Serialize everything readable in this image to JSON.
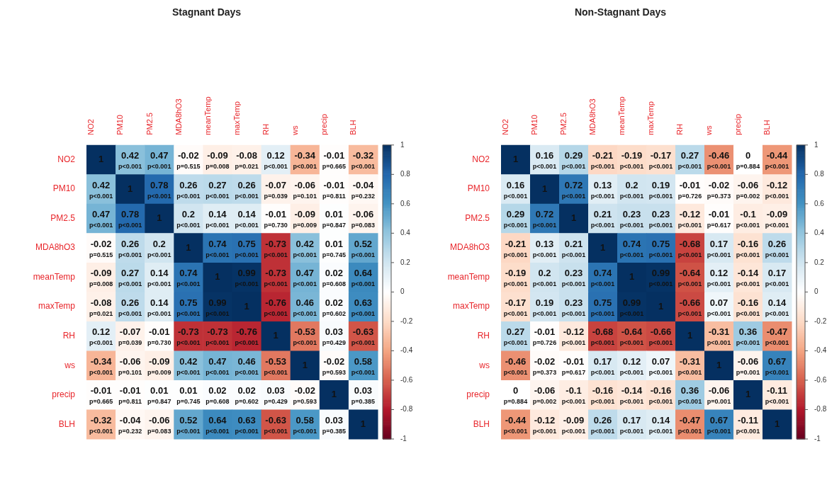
{
  "chart_data": [
    {
      "type": "heatmap",
      "title": "Stagnant Days",
      "categories": [
        "NO2",
        "PM10",
        "PM2.5",
        "MDA8hO3",
        "meanTemp",
        "maxTemp",
        "RH",
        "ws",
        "precip",
        "BLH"
      ],
      "y_categories": [
        "NO2",
        "PM10",
        "PM2.5",
        "MDA8hO3",
        "meanTemp",
        "maxTemp",
        "RH",
        "ws",
        "precip",
        "BLH"
      ],
      "cells": [
        [
          1,
          0.42,
          0.47,
          -0.02,
          -0.09,
          -0.08,
          0.12,
          -0.34,
          -0.01,
          -0.32
        ],
        [
          0.42,
          1,
          0.78,
          0.26,
          0.27,
          0.26,
          -0.07,
          -0.06,
          -0.01,
          -0.04
        ],
        [
          0.47,
          0.78,
          1,
          0.2,
          0.14,
          0.14,
          -0.01,
          -0.09,
          0.01,
          -0.06
        ],
        [
          -0.02,
          0.26,
          0.2,
          1,
          0.74,
          0.75,
          -0.73,
          0.42,
          0.01,
          0.52
        ],
        [
          -0.09,
          0.27,
          0.14,
          0.74,
          1,
          0.99,
          -0.73,
          0.47,
          0.02,
          0.64
        ],
        [
          -0.08,
          0.26,
          0.14,
          0.75,
          0.99,
          1,
          -0.76,
          0.46,
          0.02,
          0.63
        ],
        [
          0.12,
          -0.07,
          -0.01,
          -0.73,
          -0.73,
          -0.76,
          1,
          -0.53,
          0.03,
          -0.63
        ],
        [
          -0.34,
          -0.06,
          -0.09,
          0.42,
          0.47,
          0.46,
          -0.53,
          1,
          -0.02,
          0.58
        ],
        [
          -0.01,
          -0.01,
          0.01,
          0.01,
          0.02,
          0.02,
          0.03,
          -0.02,
          1,
          0.03
        ],
        [
          -0.32,
          -0.04,
          -0.06,
          0.52,
          0.64,
          0.63,
          -0.63,
          0.58,
          0.03,
          1
        ]
      ],
      "cell_labels": [
        [
          "1",
          "0.42\np<0.001",
          "0.47\np<0.001",
          "-0.02\np=0.515",
          "-0.09\np=0.008",
          "-0.08\np=0.021",
          "0.12\np<0.001",
          "-0.34\np<0.001",
          "-0.01\np=0.665",
          "-0.32\np<0.001"
        ],
        [
          "0.42\np<0.001",
          "1",
          "0.78\np<0.001",
          "0.26\np<0.001",
          "0.27\np<0.001",
          "0.26\np<0.001",
          "-0.07\np=0.039",
          "-0.06\np=0.101",
          "-0.01\np=0.811",
          "-0.04\np=0.232"
        ],
        [
          "0.47\np<0.001",
          "0.78\np<0.001",
          "1",
          "0.2\np<0.001",
          "0.14\np<0.001",
          "0.14\np<0.001",
          "-0.01\np=0.730",
          "-0.09\np=0.009",
          "0.01\np=0.847",
          "-0.06\np=0.083"
        ],
        [
          "-0.02\np=0.515",
          "0.26\np<0.001",
          "0.2\np<0.001",
          "1",
          "0.74\np<0.001",
          "0.75\np<0.001",
          "-0.73\np<0.001",
          "0.42\np<0.001",
          "0.01\np=0.745",
          "0.52\np<0.001"
        ],
        [
          "-0.09\np=0.008",
          "0.27\np<0.001",
          "0.14\np<0.001",
          "0.74\np<0.001",
          "1",
          "0.99\np<0.001",
          "-0.73\np<0.001",
          "0.47\np<0.001",
          "0.02\np=0.608",
          "0.64\np<0.001"
        ],
        [
          "-0.08\np=0.021",
          "0.26\np<0.001",
          "0.14\np<0.001",
          "0.75\np<0.001",
          "0.99\np<0.001",
          "1",
          "-0.76\np<0.001",
          "0.46\np<0.001",
          "0.02\np=0.602",
          "0.63\np<0.001"
        ],
        [
          "0.12\np<0.001",
          "-0.07\np=0.039",
          "-0.01\np=0.730",
          "-0.73\np<0.001",
          "-0.73\np<0.001",
          "-0.76\np<0.001",
          "1",
          "-0.53\np<0.001",
          "0.03\np=0.429",
          "-0.63\np<0.001"
        ],
        [
          "-0.34\np<0.001",
          "-0.06\np=0.101",
          "-0.09\np=0.009",
          "0.42\np<0.001",
          "0.47\np<0.001",
          "0.46\np<0.001",
          "-0.53\np<0.001",
          "1",
          "-0.02\np=0.593",
          "0.58\np<0.001"
        ],
        [
          "-0.01\np=0.665",
          "-0.01\np=0.811",
          "0.01\np=0.847",
          "0.01\np=0.745",
          "0.02\np=0.608",
          "0.02\np=0.602",
          "0.03\np=0.429",
          "-0.02\np=0.593",
          "1",
          "0.03\np=0.385"
        ],
        [
          "-0.32\np<0.001",
          "-0.04\np=0.232",
          "-0.06\np=0.083",
          "0.52\np<0.001",
          "0.64\np<0.001",
          "0.63\np<0.001",
          "-0.63\np<0.001",
          "0.58\np<0.001",
          "0.03\np=0.385",
          "1"
        ]
      ],
      "clim": [
        -1,
        1
      ],
      "cticks": [
        -1,
        -0.8,
        -0.6,
        -0.4,
        -0.2,
        0,
        0.2,
        0.4,
        0.6,
        0.8,
        1
      ]
    },
    {
      "type": "heatmap",
      "title": "Non-Stagnant Days",
      "categories": [
        "NO2",
        "PM10",
        "PM2.5",
        "MDA8hO3",
        "meanTemp",
        "maxTemp",
        "RH",
        "ws",
        "precip",
        "BLH"
      ],
      "y_categories": [
        "NO2",
        "PM10",
        "PM2.5",
        "MDA8hO3",
        "meanTemp",
        "maxTemp",
        "RH",
        "ws",
        "precip",
        "BLH"
      ],
      "cells": [
        [
          1,
          0.16,
          0.29,
          -0.21,
          -0.19,
          -0.17,
          0.27,
          -0.46,
          0,
          -0.44
        ],
        [
          0.16,
          1,
          0.72,
          0.13,
          0.2,
          0.19,
          -0.01,
          -0.02,
          -0.06,
          -0.12
        ],
        [
          0.29,
          0.72,
          1,
          0.21,
          0.23,
          0.23,
          -0.12,
          -0.01,
          -0.1,
          -0.09
        ],
        [
          -0.21,
          0.13,
          0.21,
          1,
          0.74,
          0.75,
          -0.68,
          0.17,
          -0.16,
          0.26
        ],
        [
          -0.19,
          0.2,
          0.23,
          0.74,
          1,
          0.99,
          -0.64,
          0.12,
          -0.14,
          0.17
        ],
        [
          -0.17,
          0.19,
          0.23,
          0.75,
          0.99,
          1,
          -0.66,
          0.07,
          -0.16,
          0.14
        ],
        [
          0.27,
          -0.01,
          -0.12,
          -0.68,
          -0.64,
          -0.66,
          1,
          -0.31,
          0.36,
          -0.47
        ],
        [
          -0.46,
          -0.02,
          -0.01,
          0.17,
          0.12,
          0.07,
          -0.31,
          1,
          -0.06,
          0.67
        ],
        [
          0,
          -0.06,
          -0.1,
          -0.16,
          -0.14,
          -0.16,
          0.36,
          -0.06,
          1,
          -0.11
        ],
        [
          -0.44,
          -0.12,
          -0.09,
          0.26,
          0.17,
          0.14,
          -0.47,
          0.67,
          -0.11,
          1
        ]
      ],
      "cell_labels": [
        [
          "1",
          "0.16\np<0.001",
          "0.29\np<0.001",
          "-0.21\np<0.001",
          "-0.19\np<0.001",
          "-0.17\np<0.001",
          "0.27\np<0.001",
          "-0.46\np<0.001",
          "0\np=0.884",
          "-0.44\np<0.001"
        ],
        [
          "0.16\np<0.001",
          "1",
          "0.72\np<0.001",
          "0.13\np<0.001",
          "0.2\np<0.001",
          "0.19\np<0.001",
          "-0.01\np=0.726",
          "-0.02\np=0.373",
          "-0.06\np=0.002",
          "-0.12\np<0.001"
        ],
        [
          "0.29\np<0.001",
          "0.72\np<0.001",
          "1",
          "0.21\np<0.001",
          "0.23\np<0.001",
          "0.23\np<0.001",
          "-0.12\np<0.001",
          "-0.01\np=0.617",
          "-0.1\np<0.001",
          "-0.09\np<0.001"
        ],
        [
          "-0.21\np<0.001",
          "0.13\np<0.001",
          "0.21\np<0.001",
          "1",
          "0.74\np<0.001",
          "0.75\np<0.001",
          "-0.68\np<0.001",
          "0.17\np<0.001",
          "-0.16\np<0.001",
          "0.26\np<0.001"
        ],
        [
          "-0.19\np<0.001",
          "0.2\np<0.001",
          "0.23\np<0.001",
          "0.74\np<0.001",
          "1",
          "0.99\np<0.001",
          "-0.64\np<0.001",
          "0.12\np<0.001",
          "-0.14\np<0.001",
          "0.17\np<0.001"
        ],
        [
          "-0.17\np<0.001",
          "0.19\np<0.001",
          "0.23\np<0.001",
          "0.75\np<0.001",
          "0.99\np<0.001",
          "1",
          "-0.66\np<0.001",
          "0.07\np<0.001",
          "-0.16\np<0.001",
          "0.14\np<0.001"
        ],
        [
          "0.27\np<0.001",
          "-0.01\np=0.726",
          "-0.12\np<0.001",
          "-0.68\np<0.001",
          "-0.64\np<0.001",
          "-0.66\np<0.001",
          "1",
          "-0.31\np<0.001",
          "0.36\np<0.001",
          "-0.47\np<0.001"
        ],
        [
          "-0.46\np<0.001",
          "-0.02\np=0.373",
          "-0.01\np=0.617",
          "0.17\np<0.001",
          "0.12\np<0.001",
          "0.07\np<0.001",
          "-0.31\np<0.001",
          "1",
          "-0.06\np=0.001",
          "0.67\np<0.001"
        ],
        [
          "0\np=0.884",
          "-0.06\np=0.002",
          "-0.1\np<0.001",
          "-0.16\np<0.001",
          "-0.14\np<0.001",
          "-0.16\np<0.001",
          "0.36\np<0.001",
          "-0.06\np=0.001",
          "1",
          "-0.11\np<0.001"
        ],
        [
          "-0.44\np<0.001",
          "-0.12\np<0.001",
          "-0.09\np<0.001",
          "0.26\np<0.001",
          "0.17\np<0.001",
          "0.14\np<0.001",
          "-0.47\np<0.001",
          "0.67\np<0.001",
          "-0.11\np<0.001",
          "1"
        ]
      ],
      "clim": [
        -1,
        1
      ],
      "cticks": [
        -1,
        -0.8,
        -0.6,
        -0.4,
        -0.2,
        0,
        0.2,
        0.4,
        0.6,
        0.8,
        1
      ]
    }
  ]
}
